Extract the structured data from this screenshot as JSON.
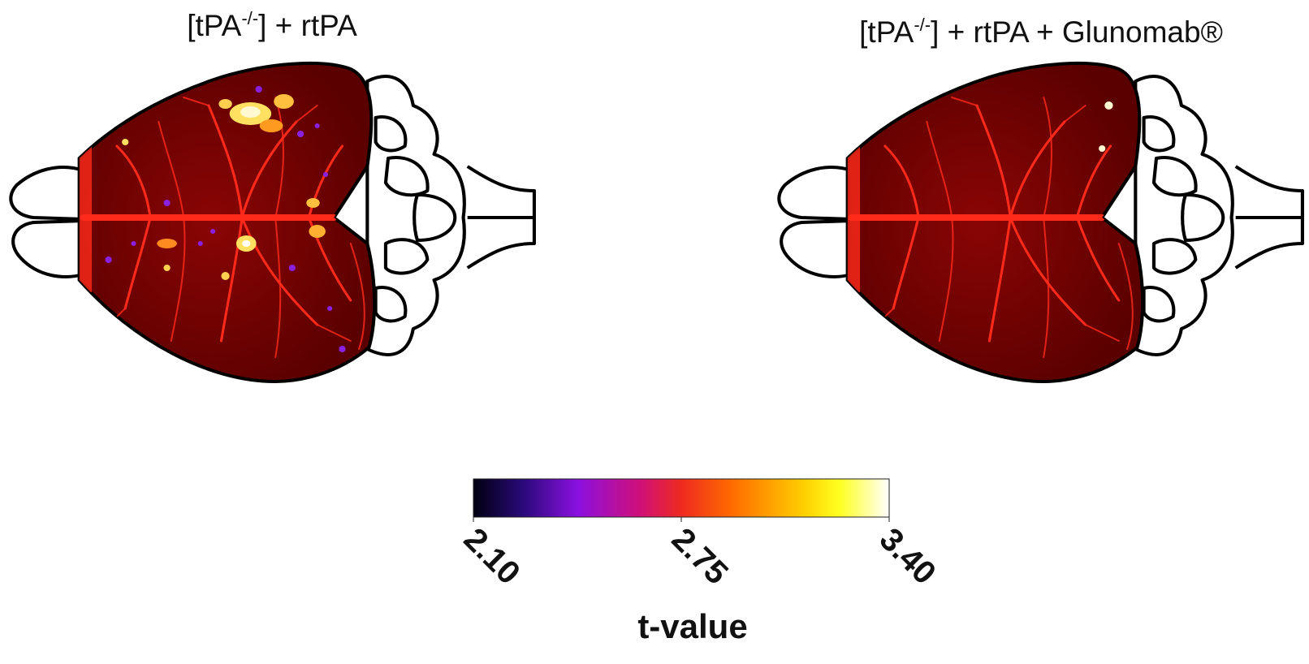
{
  "panels": [
    {
      "title": [
        "[tPA",
        "-/-",
        "] + rtPA"
      ]
    },
    {
      "title": [
        "[tPA",
        "-/-",
        "] + rtPA + Glunomab®"
      ]
    }
  ],
  "colorbar": {
    "label": "t-value",
    "lim": [
      2.1,
      3.4
    ],
    "ticks": [
      {
        "value": 2.1,
        "label": "2.10"
      },
      {
        "value": 2.75,
        "label": "2.75"
      },
      {
        "value": 3.4,
        "label": "3.40"
      }
    ]
  }
}
